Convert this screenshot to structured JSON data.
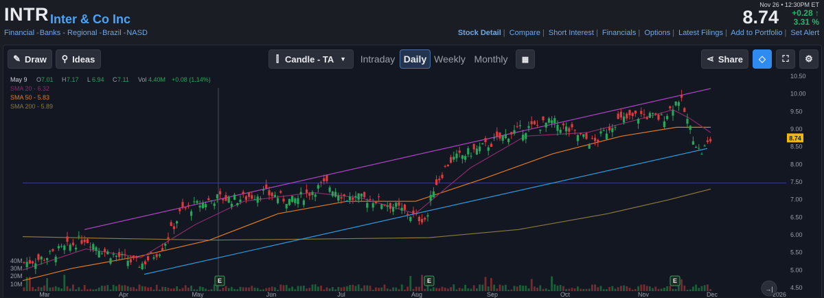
{
  "header": {
    "ticker": "INTR",
    "company": "Inter & Co Inc",
    "categories": [
      "Financial",
      "Banks - Regional",
      "Brazil",
      "NASD"
    ],
    "datetime": "Nov 26 • 12:30PM ET",
    "price": "8.74",
    "change": "+0.28",
    "change_pct": "3.31 %",
    "links": [
      "Stock Detail",
      "Compare",
      "Short Interest",
      "Financials",
      "Options",
      "Latest Filings",
      "Add to Portfolio",
      "Set Alert"
    ]
  },
  "toolbar": {
    "draw": "Draw",
    "ideas": "Ideas",
    "chart_type": "Candle - TA",
    "tabs": [
      "Intraday",
      "Daily",
      "Weekly",
      "Monthly"
    ],
    "active_tab": "Daily",
    "share": "Share"
  },
  "legend": {
    "date": "May 9",
    "o_label": "O",
    "o": "7.01",
    "h_label": "H",
    "h": "7.17",
    "l_label": "L",
    "l": "6.94",
    "c_label": "C",
    "c": "7.11",
    "vol_label": "Vol",
    "vol": "4.40M",
    "chg": "+0.08 (1.14%)",
    "sma20": "SMA 20 - 6.32",
    "sma50": "SMA 50 - 5.83",
    "sma200": "SMA 200 - 5.89"
  },
  "colors": {
    "up": "#26a65b",
    "down": "#e0393e",
    "sma20": "#8b2c6a",
    "sma50": "#e07b22",
    "sma200": "#8d7a3c",
    "channel_upper": "#b044c8",
    "channel_lower": "#2f9be0",
    "hline": "#34407a",
    "accent": "#2e8cf0"
  },
  "chart_data": {
    "type": "candlestick",
    "y_ticks": [
      "10.50",
      "10.00",
      "9.50",
      "9.00",
      "8.50",
      "8.00",
      "7.50",
      "7.00",
      "6.50",
      "6.00",
      "5.50",
      "5.00",
      "4.50"
    ],
    "ylim": [
      4.5,
      10.5
    ],
    "x_ticks": [
      "Mar",
      "Apr",
      "May",
      "Jun",
      "Jul",
      "Aug",
      "Sep",
      "Oct",
      "Nov",
      "Dec",
      "2026"
    ],
    "volume_ticks": [
      "40M",
      "30M",
      "20M",
      "10M"
    ],
    "last_price_label": "8.74",
    "horizontal_level": 7.47,
    "earnings_markers": [
      "E",
      "E",
      "E"
    ],
    "series": [
      {
        "name": "SMA 20",
        "last": 6.32
      },
      {
        "name": "SMA 50",
        "last": 5.83
      },
      {
        "name": "SMA 200",
        "last": 5.89
      }
    ],
    "key_points": [
      {
        "x": "Mar",
        "close": 5.2
      },
      {
        "x": "Apr",
        "close": 5.3
      },
      {
        "x": "May",
        "close": 6.9
      },
      {
        "x": "Jun",
        "close": 7.2
      },
      {
        "x": "Jul",
        "close": 7.1
      },
      {
        "x": "Aug",
        "close": 6.6
      },
      {
        "x": "Sep",
        "close": 8.9
      },
      {
        "x": "Oct",
        "close": 9.1
      },
      {
        "x": "Nov",
        "close": 9.6
      },
      {
        "x": "Nov 26",
        "close": 8.74
      }
    ]
  }
}
